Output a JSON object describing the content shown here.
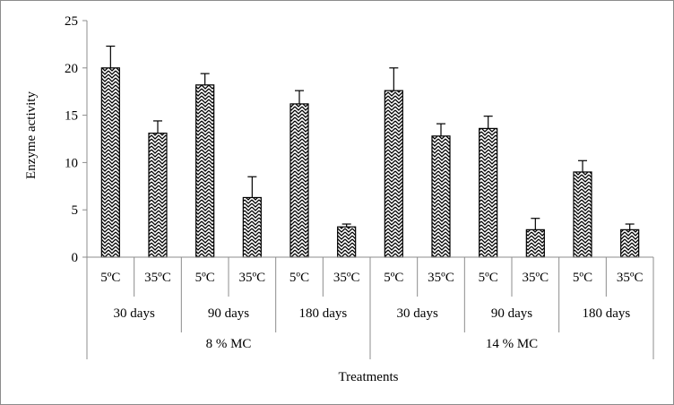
{
  "chart_data": {
    "type": "bar",
    "title": "",
    "xlabel": "Treatments",
    "ylabel": "Enzyme activity",
    "ylim": [
      0,
      25
    ],
    "yticks": [
      0,
      5,
      10,
      15,
      20,
      25
    ],
    "grid": false,
    "legend": "none",
    "bar_pattern": "zigzag-hatch",
    "colors": {
      "bar_stroke": "#000000",
      "axis": "#8c8c8c",
      "text": "#000000"
    },
    "categories": [
      "5ºC",
      "35ºC",
      "5ºC",
      "35ºC",
      "5ºC",
      "35ºC",
      "5ºC",
      "35ºC",
      "5ºC",
      "35ºC",
      "5ºC",
      "35ºC"
    ],
    "values": [
      20.0,
      13.1,
      18.2,
      6.3,
      16.2,
      3.2,
      17.6,
      12.8,
      13.6,
      2.9,
      9.0,
      2.9
    ],
    "errors": [
      2.3,
      1.3,
      1.2,
      2.2,
      1.4,
      0.3,
      2.4,
      1.3,
      1.3,
      1.2,
      1.2,
      0.6
    ],
    "duration_groups": [
      "30 days",
      "90 days",
      "180 days",
      "30 days",
      "90 days",
      "180 days"
    ],
    "moisture_groups": [
      "8 % MC",
      "14 % MC"
    ]
  }
}
